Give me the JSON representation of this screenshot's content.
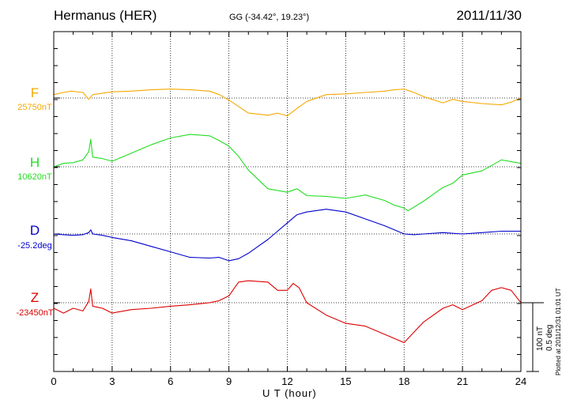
{
  "header": {
    "station": "Hermanus (HER)",
    "coords": "GG (-34.42°,  19.23°)",
    "date": "2011/11/30"
  },
  "footer": {
    "xlabel": "U T (hour)",
    "plotted": "Plotted at 2011/12/31 01:01 UT",
    "scale_nt": "100 nT",
    "scale_deg": "0.5 deg"
  },
  "chart_data": {
    "type": "line",
    "xlabel": "U T (hour)",
    "xlim": [
      0,
      24
    ],
    "x_ticks": [
      0,
      3,
      6,
      9,
      12,
      15,
      18,
      21,
      24
    ],
    "grid": true,
    "scale_bar": {
      "value_nt": 100,
      "value_deg": 0.5
    },
    "series": [
      {
        "name": "F",
        "baseline_label": "25750nT",
        "unit": "nT",
        "color": "#f5a800",
        "baseline": 25750,
        "x": [
          0,
          0.5,
          0.9,
          1.5,
          1.8,
          2.0,
          2.5,
          3,
          4,
          5,
          6,
          7,
          8,
          8.5,
          9,
          10,
          11,
          11.5,
          12,
          12.5,
          13,
          14,
          15,
          16,
          17,
          17.5,
          18,
          18.5,
          19,
          20,
          20.5,
          21,
          22,
          23,
          23.5,
          24
        ],
        "y": [
          25755,
          25758,
          25760,
          25758,
          25748,
          25755,
          25757,
          25759,
          25760,
          25762,
          25763,
          25762,
          25760,
          25755,
          25747,
          25728,
          25725,
          25728,
          25724,
          25735,
          25745,
          25755,
          25756,
          25758,
          25760,
          25762,
          25763,
          25758,
          25752,
          25743,
          25748,
          25745,
          25742,
          25740,
          25744,
          25750
        ]
      },
      {
        "name": "H",
        "baseline_label": "10620nT",
        "unit": "nT",
        "color": "#22dd22",
        "baseline": 10620,
        "x": [
          0,
          0.5,
          1,
          1.5,
          1.8,
          1.9,
          2.0,
          2.5,
          3,
          4,
          5,
          6,
          7,
          8,
          8.5,
          9,
          9.5,
          10,
          11,
          12,
          12.5,
          13,
          14,
          15,
          16,
          17,
          17.5,
          18,
          18.2,
          19,
          20,
          20.5,
          21,
          22,
          23,
          24
        ],
        "y": [
          10620,
          10625,
          10626,
          10630,
          10642,
          10660,
          10634,
          10632,
          10628,
          10640,
          10652,
          10662,
          10667,
          10665,
          10658,
          10650,
          10635,
          10615,
          10588,
          10583,
          10588,
          10578,
          10577,
          10574,
          10579,
          10571,
          10564,
          10560,
          10556,
          10570,
          10590,
          10596,
          10608,
          10614,
          10630,
          10625
        ]
      },
      {
        "name": "D",
        "baseline_label": "-25.2deg",
        "unit": "deg",
        "color": "#0000cc",
        "baseline": -25.2,
        "x": [
          0,
          0.5,
          1,
          1.5,
          1.8,
          1.9,
          2.0,
          2.5,
          3,
          4,
          5,
          6,
          7,
          8,
          8.5,
          9,
          9.5,
          10,
          10.5,
          11,
          11.5,
          12,
          12.5,
          13,
          14,
          15,
          16,
          17,
          17.5,
          18,
          18.5,
          19,
          20,
          21,
          22,
          23,
          24
        ],
        "y": [
          -25.2,
          -25.205,
          -25.21,
          -25.205,
          -25.19,
          -25.17,
          -25.2,
          -25.21,
          -25.225,
          -25.25,
          -25.29,
          -25.33,
          -25.37,
          -25.375,
          -25.37,
          -25.395,
          -25.38,
          -25.34,
          -25.29,
          -25.24,
          -25.18,
          -25.12,
          -25.06,
          -25.04,
          -25.02,
          -25.04,
          -25.09,
          -25.14,
          -25.17,
          -25.2,
          -25.205,
          -25.2,
          -25.19,
          -25.2,
          -25.19,
          -25.18,
          -25.18
        ]
      },
      {
        "name": "Z",
        "baseline_label": "-23450nT",
        "unit": "nT",
        "color": "#dd0000",
        "baseline": -23450,
        "x": [
          0,
          0.5,
          1,
          1.5,
          1.8,
          1.9,
          2.0,
          2.5,
          3,
          4,
          5,
          6,
          7,
          8,
          8.5,
          9,
          9.5,
          10,
          11,
          11.5,
          12,
          12.3,
          12.6,
          13,
          14,
          15,
          16,
          17,
          18,
          18.5,
          19,
          20,
          20.5,
          21,
          22,
          22.5,
          23,
          23.5,
          24
        ],
        "y": [
          -23458,
          -23465,
          -23458,
          -23462,
          -23448,
          -23430,
          -23455,
          -23458,
          -23465,
          -23460,
          -23458,
          -23455,
          -23453,
          -23450,
          -23447,
          -23440,
          -23420,
          -23418,
          -23420,
          -23432,
          -23432,
          -23422,
          -23428,
          -23450,
          -23468,
          -23480,
          -23484,
          -23496,
          -23508,
          -23493,
          -23478,
          -23458,
          -23453,
          -23460,
          -23447,
          -23432,
          -23428,
          -23432,
          -23450
        ]
      }
    ]
  }
}
